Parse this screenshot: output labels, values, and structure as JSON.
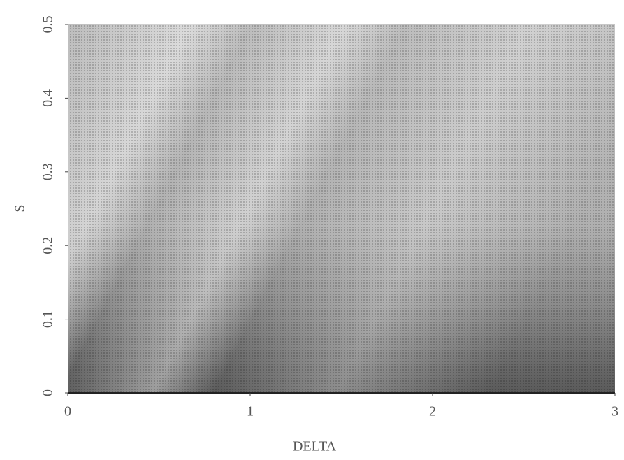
{
  "chart_data": {
    "type": "density",
    "x_label": "DELTA",
    "y_label": "S",
    "xlim": [
      0,
      3
    ],
    "xticks": [
      0,
      1,
      2,
      3
    ],
    "ylim": [
      0,
      0.5
    ],
    "yticks": [
      0,
      0.1,
      0.2,
      0.3,
      0.4,
      0.5
    ]
  }
}
